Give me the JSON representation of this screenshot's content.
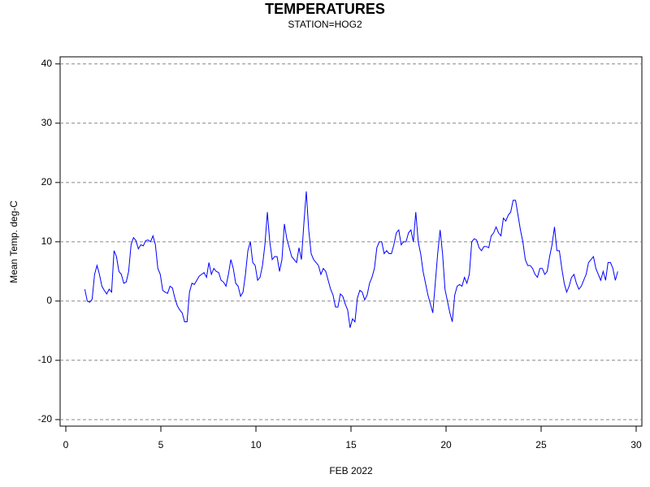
{
  "chart_data": {
    "type": "line",
    "title": "TEMPERATURES",
    "subtitle": "STATION=HOG2",
    "x_label": "FEB 2022",
    "y_label": "Mean Temp. deg-C",
    "grid": true,
    "xlim": [
      -0.3,
      30.3
    ],
    "ylim": [
      -21.1,
      41.2
    ],
    "xticks": [
      0,
      5,
      10,
      15,
      20,
      25,
      30
    ],
    "yticks": [
      -20,
      -10,
      0,
      10,
      20,
      30,
      40
    ],
    "x": [
      1,
      1.128,
      1.256,
      1.384,
      1.512,
      1.64,
      1.768,
      1.896,
      2.024,
      2.152,
      2.28,
      2.408,
      2.536,
      2.664,
      2.792,
      2.92,
      3.048,
      3.176,
      3.304,
      3.432,
      3.56,
      3.688,
      3.816,
      3.944,
      4.072,
      4.2,
      4.328,
      4.456,
      4.584,
      4.712,
      4.84,
      4.968,
      5.096,
      5.224,
      5.352,
      5.48,
      5.608,
      5.736,
      5.864,
      5.992,
      6.12,
      6.248,
      6.376,
      6.504,
      6.632,
      6.76,
      6.888,
      7.016,
      7.144,
      7.272,
      7.4,
      7.528,
      7.656,
      7.784,
      7.912,
      8.04,
      8.168,
      8.296,
      8.424,
      8.552,
      8.68,
      8.808,
      8.936,
      9.064,
      9.192,
      9.32,
      9.448,
      9.576,
      9.704,
      9.832,
      9.96,
      10.088,
      10.216,
      10.344,
      10.472,
      10.6,
      10.728,
      10.856,
      10.984,
      11.112,
      11.24,
      11.368,
      11.496,
      11.624,
      11.752,
      11.88,
      12.008,
      12.136,
      12.264,
      12.392,
      12.52,
      12.648,
      12.776,
      12.904,
      13.032,
      13.16,
      13.288,
      13.416,
      13.544,
      13.672,
      13.8,
      13.928,
      14.056,
      14.184,
      14.312,
      14.44,
      14.568,
      14.696,
      14.824,
      14.952,
      15.08,
      15.208,
      15.336,
      15.464,
      15.592,
      15.72,
      15.848,
      15.976,
      16.104,
      16.232,
      16.36,
      16.488,
      16.616,
      16.744,
      16.872,
      17,
      17.128,
      17.256,
      17.384,
      17.512,
      17.64,
      17.768,
      17.896,
      18.024,
      18.152,
      18.28,
      18.408,
      18.536,
      18.664,
      18.792,
      18.92,
      19.048,
      19.176,
      19.304,
      19.432,
      19.56,
      19.688,
      19.816,
      19.944,
      20.072,
      20.2,
      20.328,
      20.456,
      20.584,
      20.712,
      20.84,
      20.968,
      21.096,
      21.224,
      21.352,
      21.48,
      21.608,
      21.736,
      21.864,
      21.992,
      22.12,
      22.248,
      22.376,
      22.504,
      22.632,
      22.76,
      22.888,
      23.016,
      23.144,
      23.272,
      23.4,
      23.528,
      23.656,
      23.784,
      23.912,
      24.04,
      24.168,
      24.296,
      24.424,
      24.552,
      24.68,
      24.808,
      24.936,
      25.064,
      25.192,
      25.32,
      25.448,
      25.576,
      25.704,
      25.832,
      25.96,
      26.088,
      26.216,
      26.344,
      26.472,
      26.6,
      26.728,
      26.856,
      26.984,
      27.112,
      27.24,
      27.368,
      27.496,
      27.624,
      27.752,
      27.88,
      28.008,
      28.136,
      28.264,
      28.392,
      28.52,
      28.648,
      28.776,
      28.904,
      29.032
    ],
    "series": [
      {
        "color": "#0000ff",
        "values": [
          2.0,
          0.0,
          -0.2,
          0.3,
          4.5,
          6.0,
          4.5,
          2.5,
          1.8,
          1.2,
          2.0,
          1.5,
          8.5,
          7.5,
          5.0,
          4.5,
          3.0,
          3.2,
          5.0,
          9.5,
          10.7,
          10.2,
          8.8,
          9.5,
          9.3,
          10.2,
          10.3,
          10.0,
          11.0,
          9.5,
          5.5,
          4.5,
          1.8,
          1.5,
          1.3,
          2.5,
          2.2,
          0.5,
          -0.8,
          -1.5,
          -2.0,
          -3.5,
          -3.5,
          1.5,
          3.0,
          2.8,
          3.5,
          4.2,
          4.5,
          4.8,
          4.0,
          6.5,
          4.5,
          5.5,
          5.0,
          4.8,
          3.5,
          3.2,
          2.5,
          4.5,
          7.0,
          5.5,
          3.0,
          2.5,
          0.8,
          1.5,
          4.5,
          8.5,
          10.0,
          6.5,
          6.0,
          3.5,
          4.0,
          6.0,
          9.5,
          15.0,
          10.0,
          7.0,
          7.5,
          7.5,
          5.0,
          7.0,
          13.0,
          10.5,
          9.0,
          7.5,
          7.0,
          6.5,
          9.0,
          7.0,
          13.0,
          18.5,
          12.0,
          8.0,
          7.0,
          6.5,
          6.0,
          4.5,
          5.5,
          5.0,
          3.5,
          2.0,
          1.0,
          -1.0,
          -1.0,
          1.2,
          0.8,
          -0.5,
          -1.5,
          -4.5,
          -3.0,
          -3.5,
          0.5,
          1.8,
          1.5,
          0.2,
          1.0,
          3.0,
          4.0,
          5.5,
          9.0,
          10.0,
          10.0,
          8.0,
          8.5,
          8.0,
          8.0,
          9.5,
          11.5,
          12.0,
          9.5,
          10.0,
          10.0,
          11.5,
          12.0,
          10.0,
          15.0,
          10.0,
          8.0,
          5.0,
          3.0,
          1.0,
          -0.5,
          -2.0,
          3.0,
          8.0,
          12.0,
          8.0,
          2.0,
          0.0,
          -2.0,
          -3.5,
          1.0,
          2.5,
          2.8,
          2.5,
          4.0,
          3.0,
          4.5,
          10.0,
          10.5,
          10.3,
          9.0,
          8.5,
          9.2,
          9.2,
          9.0,
          11.0,
          11.5,
          12.5,
          11.5,
          11.0,
          14.0,
          13.5,
          14.5,
          15.0,
          17.0,
          17.0,
          14.5,
          12.0,
          10.0,
          7.0,
          6.0,
          6.0,
          5.5,
          4.5,
          4.0,
          5.5,
          5.5,
          4.5,
          5.0,
          7.5,
          9.5,
          12.5,
          8.5,
          8.5,
          5.5,
          3.0,
          1.5,
          2.5,
          4.0,
          4.5,
          3.0,
          2.0,
          2.5,
          3.5,
          4.5,
          6.5,
          7.0,
          7.5,
          5.5,
          4.5,
          3.5,
          5.0,
          3.5,
          6.5,
          6.5,
          5.5,
          3.5,
          5.0
        ]
      }
    ]
  }
}
